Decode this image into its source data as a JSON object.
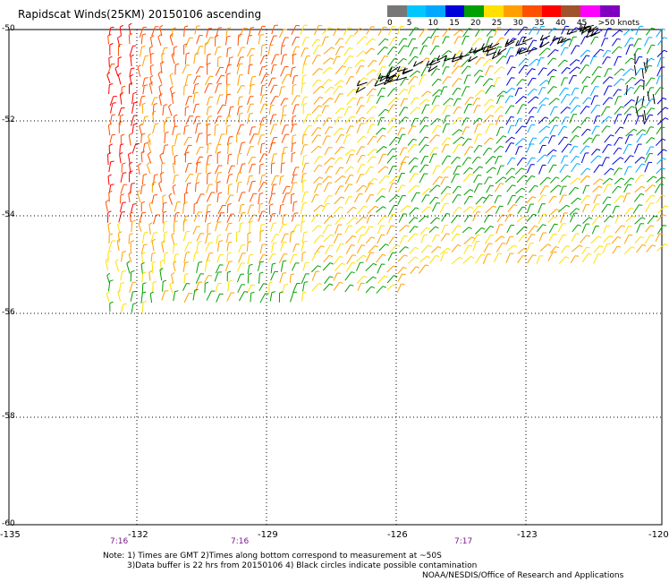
{
  "title": "Rapidscat Winds(25KM) 20150106 ascending",
  "legend": {
    "labels": [
      "0",
      "5",
      "10",
      "15",
      "20",
      "25",
      "30",
      "35",
      "40",
      "45",
      ">50 knots"
    ],
    "colors": [
      "#777777",
      "#00c8ff",
      "#00a8ff",
      "#0000d8",
      "#00a000",
      "#ffe000",
      "#ffa000",
      "#ff5000",
      "#ff0000",
      "#a0522d",
      "#ff00ff",
      "#8000c0"
    ]
  },
  "axes": {
    "lat_labels": [
      "-50",
      "-52",
      "-54",
      "-56",
      "-58",
      "-60"
    ],
    "lon_labels": [
      "-135",
      "-132",
      "-129",
      "-126",
      "-123",
      "-120"
    ]
  },
  "times": [
    "7:16",
    "7:16",
    "7:17"
  ],
  "notes": {
    "line1": "Note: 1) Times are GMT 2)Times along bottom correspond to measurement at ~50S",
    "line2": "3)Data buffer is 22 hrs from 20150106 4) Black circles indicate possible contamination",
    "line3": "NOAA/NESDIS/Office of Research and Applications"
  }
}
